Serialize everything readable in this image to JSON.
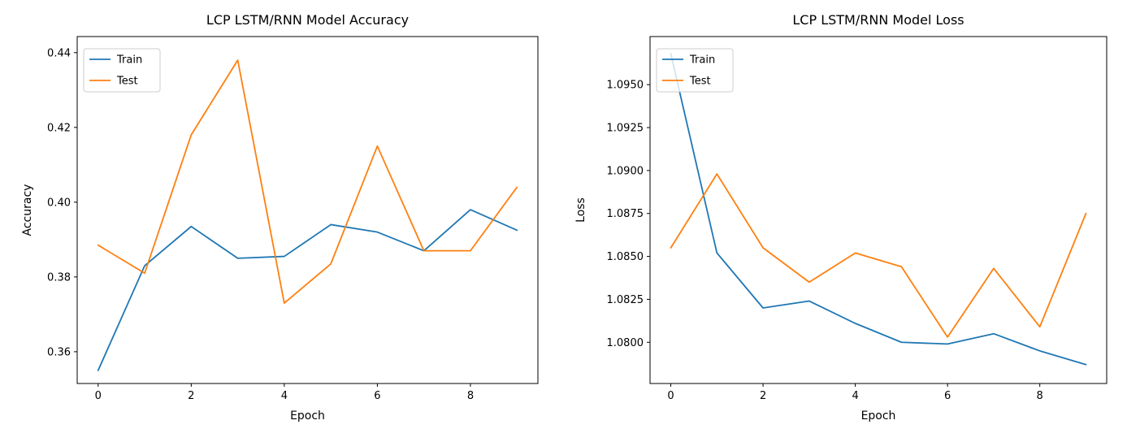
{
  "page": {
    "background_color": "#ffffff",
    "text_color": "#000000",
    "spine_color": "#000000"
  },
  "colors": {
    "train": "#1f77b4",
    "test": "#ff7f0e",
    "legend_border": "#cccccc",
    "legend_fill": "#ffffff"
  },
  "chart_data": [
    {
      "type": "line",
      "title": "LCP LSTM/RNN Model Accuracy",
      "xlabel": "Epoch",
      "ylabel": "Accuracy",
      "legend_entries": [
        "Train",
        "Test"
      ],
      "legend_position": "upper left",
      "grid": false,
      "x": [
        0,
        1,
        2,
        3,
        4,
        5,
        6,
        7,
        8,
        9
      ],
      "series": [
        {
          "name": "Train",
          "color_key": "train",
          "values": [
            0.355,
            0.383,
            0.3935,
            0.385,
            0.3855,
            0.394,
            0.392,
            0.387,
            0.398,
            0.3925
          ]
        },
        {
          "name": "Test",
          "color_key": "test",
          "values": [
            0.3885,
            0.381,
            0.418,
            0.438,
            0.373,
            0.3835,
            0.415,
            0.387,
            0.387,
            0.404
          ]
        }
      ],
      "xlim": [
        -0.45,
        9.45
      ],
      "ylim": [
        0.3515,
        0.4443
      ],
      "xticks": [
        0,
        2,
        4,
        6,
        8
      ],
      "xtick_labels": [
        "0",
        "2",
        "4",
        "6",
        "8"
      ],
      "yticks": [
        0.36,
        0.38,
        0.4,
        0.42,
        0.44
      ],
      "ytick_labels": [
        "0.36",
        "0.38",
        "0.40",
        "0.42",
        "0.44"
      ]
    },
    {
      "type": "line",
      "title": "LCP LSTM/RNN Model Loss",
      "xlabel": "Epoch",
      "ylabel": "Loss",
      "legend_entries": [
        "Train",
        "Test"
      ],
      "legend_position": "upper left",
      "grid": false,
      "x": [
        0,
        1,
        2,
        3,
        4,
        5,
        6,
        7,
        8,
        9
      ],
      "series": [
        {
          "name": "Train",
          "color_key": "train",
          "values": [
            1.0968,
            1.0852,
            1.082,
            1.0824,
            1.0811,
            1.08,
            1.0799,
            1.0805,
            1.0795,
            1.0787
          ]
        },
        {
          "name": "Test",
          "color_key": "test",
          "values": [
            1.0855,
            1.0898,
            1.0855,
            1.0835,
            1.0852,
            1.0844,
            1.0803,
            1.0843,
            1.0809,
            1.0875
          ]
        }
      ],
      "xlim": [
        -0.45,
        9.45
      ],
      "ylim": [
        1.0776,
        1.0978
      ],
      "xticks": [
        0,
        2,
        4,
        6,
        8
      ],
      "xtick_labels": [
        "0",
        "2",
        "4",
        "6",
        "8"
      ],
      "yticks": [
        1.08,
        1.0825,
        1.085,
        1.0875,
        1.09,
        1.0925,
        1.095
      ],
      "ytick_labels": [
        "1.0800",
        "1.0825",
        "1.0850",
        "1.0875",
        "1.0900",
        "1.0925",
        "1.0950"
      ]
    }
  ]
}
